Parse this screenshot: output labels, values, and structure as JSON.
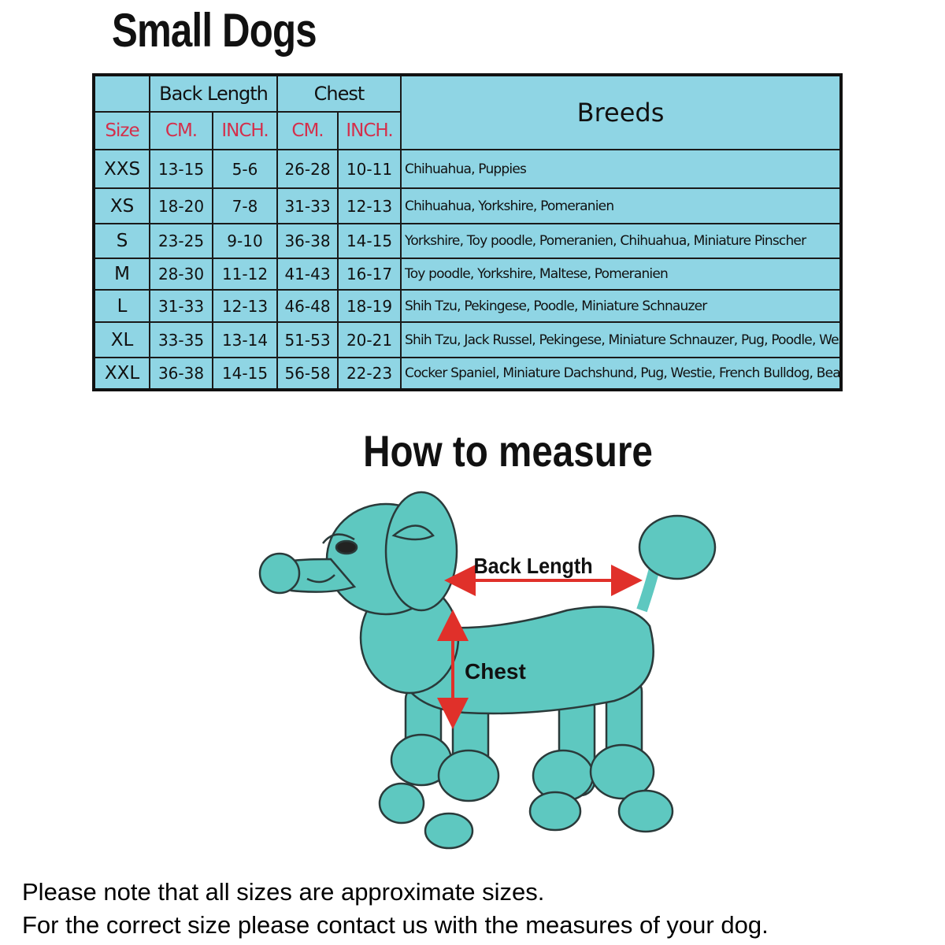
{
  "title": "Small Dogs",
  "table": {
    "group_headers": {
      "back_length": "Back Length",
      "chest": "Chest",
      "breeds": "Breeds"
    },
    "sub_headers": {
      "size": "Size",
      "back_cm": "CM.",
      "back_inch": "INCH.",
      "chest_cm": "CM.",
      "chest_inch": "INCH."
    },
    "rows": [
      {
        "size": "XXS",
        "back_cm": "13-15",
        "back_inch": "5-6",
        "chest_cm": "26-28",
        "chest_inch": "10-11",
        "breeds": "Chihuahua, Puppies"
      },
      {
        "size": "XS",
        "back_cm": "18-20",
        "back_inch": "7-8",
        "chest_cm": "31-33",
        "chest_inch": "12-13",
        "breeds": "Chihuahua, Yorkshire, Pomeranien"
      },
      {
        "size": "S",
        "back_cm": "23-25",
        "back_inch": "9-10",
        "chest_cm": "36-38",
        "chest_inch": "14-15",
        "breeds": "Yorkshire, Toy poodle, Pomeranien, Chihuahua, Miniature Pinscher"
      },
      {
        "size": "M",
        "back_cm": "28-30",
        "back_inch": "11-12",
        "chest_cm": "41-43",
        "chest_inch": "16-17",
        "breeds": "Toy poodle, Yorkshire, Maltese, Pomeranien"
      },
      {
        "size": "L",
        "back_cm": "31-33",
        "back_inch": "12-13",
        "chest_cm": "46-48",
        "chest_inch": "18-19",
        "breeds": "Shih Tzu, Pekingese, Poodle, Miniature Schnauzer"
      },
      {
        "size": "XL",
        "back_cm": "33-35",
        "back_inch": "13-14",
        "chest_cm": "51-53",
        "chest_inch": "20-21",
        "breeds": "Shih Tzu, Jack Russel, Pekingese, Miniature Schnauzer, Pug, Poodle, Westie"
      },
      {
        "size": "XXL",
        "back_cm": "36-38",
        "back_inch": "14-15",
        "chest_cm": "56-58",
        "chest_inch": "22-23",
        "breeds": "Cocker Spaniel, Miniature Dachshund, Pug, Westie, French Bulldog, Beagle"
      }
    ]
  },
  "measure": {
    "title": "How to measure",
    "back_length_label": "Back Length",
    "chest_label": "Chest"
  },
  "notes": [
    "Please note that all sizes are approximate sizes.",
    "For the correct size please contact us with the measures of your dog."
  ],
  "colors": {
    "table_bg": "#8fd5e4",
    "header_red": "#d42f4b",
    "dog": "#5ec8c0",
    "arrow": "#e0302a"
  }
}
